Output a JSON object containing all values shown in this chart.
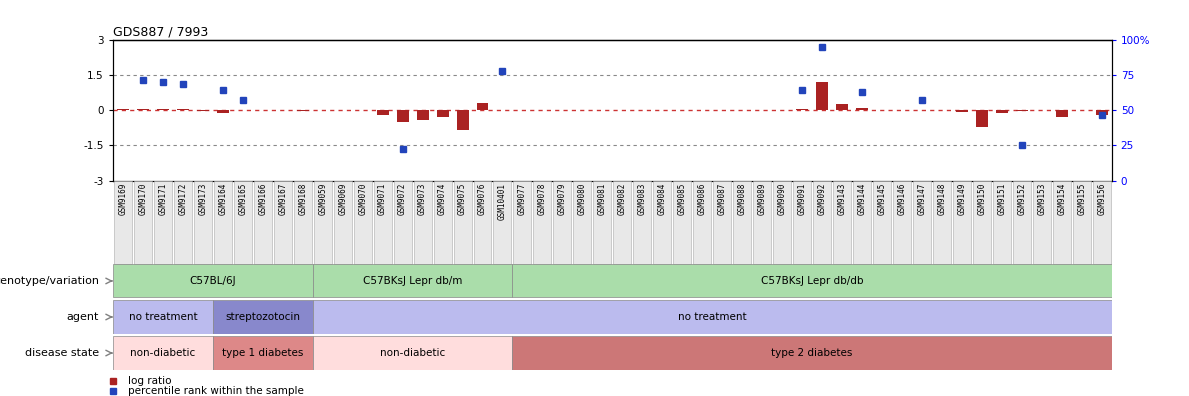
{
  "title": "GDS887 / 7993",
  "samples": [
    "GSM9169",
    "GSM9170",
    "GSM9171",
    "GSM9172",
    "GSM9173",
    "GSM9164",
    "GSM9165",
    "GSM9166",
    "GSM9167",
    "GSM9168",
    "GSM9059",
    "GSM9069",
    "GSM9070",
    "GSM9071",
    "GSM9072",
    "GSM9073",
    "GSM9074",
    "GSM9075",
    "GSM9076",
    "GSM10401",
    "GSM9077",
    "GSM9078",
    "GSM9079",
    "GSM9080",
    "GSM9081",
    "GSM9082",
    "GSM9083",
    "GSM9084",
    "GSM9085",
    "GSM9086",
    "GSM9087",
    "GSM9088",
    "GSM9089",
    "GSM9090",
    "GSM9091",
    "GSM9092",
    "GSM9143",
    "GSM9144",
    "GSM9145",
    "GSM9146",
    "GSM9147",
    "GSM9148",
    "GSM9149",
    "GSM9150",
    "GSM9151",
    "GSM9152",
    "GSM9153",
    "GSM9154",
    "GSM9155",
    "GSM9156"
  ],
  "log_ratio": [
    0.04,
    0.04,
    0.03,
    0.03,
    -0.02,
    -0.12,
    0.01,
    0.0,
    0.0,
    -0.04,
    0.01,
    0.0,
    0.01,
    -0.22,
    -0.52,
    -0.42,
    -0.3,
    -0.85,
    0.32,
    0.01,
    0.0,
    0.0,
    0.0,
    0.0,
    0.0,
    0.0,
    0.0,
    0.0,
    0.0,
    0.0,
    0.0,
    0.0,
    0.0,
    0.0,
    0.04,
    1.18,
    0.28,
    0.08,
    0.01,
    0.0,
    0.0,
    0.0,
    -0.1,
    -0.72,
    -0.13,
    -0.04,
    0.0,
    -0.3,
    0.0,
    -0.2
  ],
  "percentile": [
    null,
    1.3,
    1.2,
    1.1,
    null,
    0.85,
    0.45,
    null,
    null,
    null,
    null,
    null,
    null,
    null,
    -1.65,
    null,
    null,
    null,
    null,
    1.65,
    null,
    null,
    null,
    null,
    null,
    null,
    null,
    null,
    null,
    null,
    null,
    null,
    null,
    null,
    0.85,
    2.7,
    null,
    0.75,
    null,
    null,
    0.45,
    null,
    null,
    null,
    null,
    -1.5,
    null,
    null,
    null,
    -0.2
  ],
  "genotype_groups": [
    {
      "label": "C57BL/6J",
      "start": 0,
      "end": 9,
      "color": "#aaddaa"
    },
    {
      "label": "C57BKsJ Lepr db/m",
      "start": 10,
      "end": 19,
      "color": "#aaddaa"
    },
    {
      "label": "C57BKsJ Lepr db/db",
      "start": 20,
      "end": 49,
      "color": "#aaddaa"
    }
  ],
  "agent_groups": [
    {
      "label": "no treatment",
      "start": 0,
      "end": 4,
      "color": "#bbbbee"
    },
    {
      "label": "streptozotocin",
      "start": 5,
      "end": 9,
      "color": "#8888cc"
    },
    {
      "label": "no treatment",
      "start": 10,
      "end": 49,
      "color": "#bbbbee"
    }
  ],
  "disease_groups": [
    {
      "label": "non-diabetic",
      "start": 0,
      "end": 4,
      "color": "#ffdddd"
    },
    {
      "label": "type 1 diabetes",
      "start": 5,
      "end": 9,
      "color": "#dd8888"
    },
    {
      "label": "non-diabetic",
      "start": 10,
      "end": 19,
      "color": "#ffdddd"
    },
    {
      "label": "type 2 diabetes",
      "start": 20,
      "end": 49,
      "color": "#cc7777"
    }
  ],
  "ylim": [
    -3,
    3
  ],
  "yticks": [
    -3,
    -1.5,
    0,
    1.5,
    3
  ],
  "y2ticks_pct": [
    0,
    25,
    50,
    75,
    100
  ],
  "hline_red": 0,
  "hlines_black": [
    1.5,
    -1.5
  ],
  "bar_color": "#aa2222",
  "dot_color": "#2244bb",
  "row_labels": [
    "genotype/variation",
    "agent",
    "disease state"
  ],
  "legend": [
    {
      "label": "log ratio",
      "color": "#aa2222"
    },
    {
      "label": "percentile rank within the sample",
      "color": "#2244bb"
    }
  ]
}
